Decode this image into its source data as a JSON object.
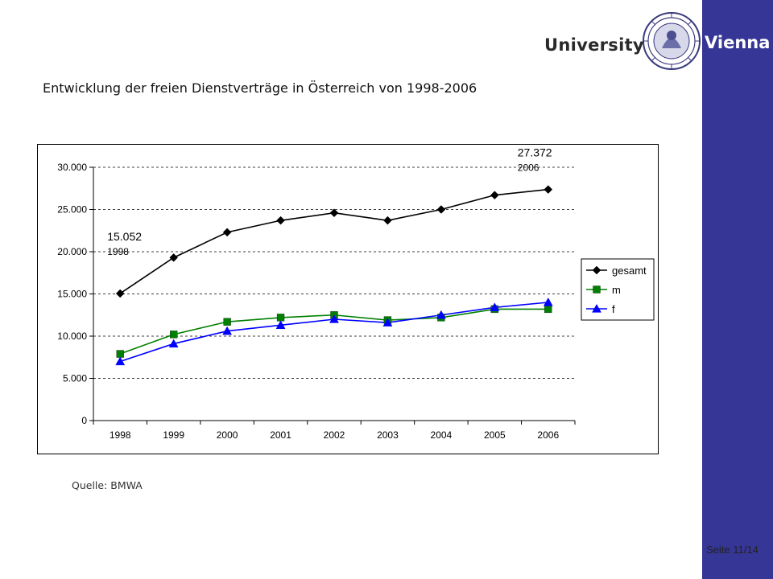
{
  "header": {
    "university": "University",
    "vienna": "Vienna"
  },
  "slide": {
    "title": "Entwicklung der freien Dienstverträge in Österreich von 1998-2006",
    "source": "Quelle: BMWA",
    "page": "Seite 11/14"
  },
  "colors": {
    "sidebar": "#363696",
    "gesamt": "#000000",
    "m": "#008000",
    "f": "#0000ff"
  },
  "chart_data": {
    "type": "line",
    "title": "",
    "xlabel": "",
    "ylabel": "",
    "categories": [
      "1998",
      "1999",
      "2000",
      "2001",
      "2002",
      "2003",
      "2004",
      "2005",
      "2006"
    ],
    "ylim": [
      0,
      30000
    ],
    "yticks": [
      0,
      5000,
      10000,
      15000,
      20000,
      25000,
      30000
    ],
    "ytick_labels": [
      "0",
      "5.000",
      "10.000",
      "15.000",
      "20.000",
      "25.000",
      "30.000"
    ],
    "grid": "horizontal-dashed",
    "legend": "right",
    "series": [
      {
        "name": "gesamt",
        "marker": "diamond",
        "color": "#000000",
        "values": [
          15052,
          19300,
          22300,
          23700,
          24600,
          23700,
          25000,
          26700,
          27372
        ]
      },
      {
        "name": "m",
        "marker": "square",
        "color": "#008000",
        "values": [
          7900,
          10200,
          11700,
          12200,
          12500,
          11900,
          12200,
          13200,
          13200
        ]
      },
      {
        "name": "f",
        "marker": "triangle",
        "color": "#0000ff",
        "values": [
          7000,
          9100,
          10600,
          11300,
          12000,
          11600,
          12500,
          13400,
          14000
        ]
      }
    ],
    "annotations": [
      {
        "label_value": "15.052",
        "label_year": "1998",
        "series": 0,
        "index": 0
      },
      {
        "label_value": "27.372",
        "label_year": "2006",
        "series": 0,
        "index": 8
      }
    ]
  }
}
